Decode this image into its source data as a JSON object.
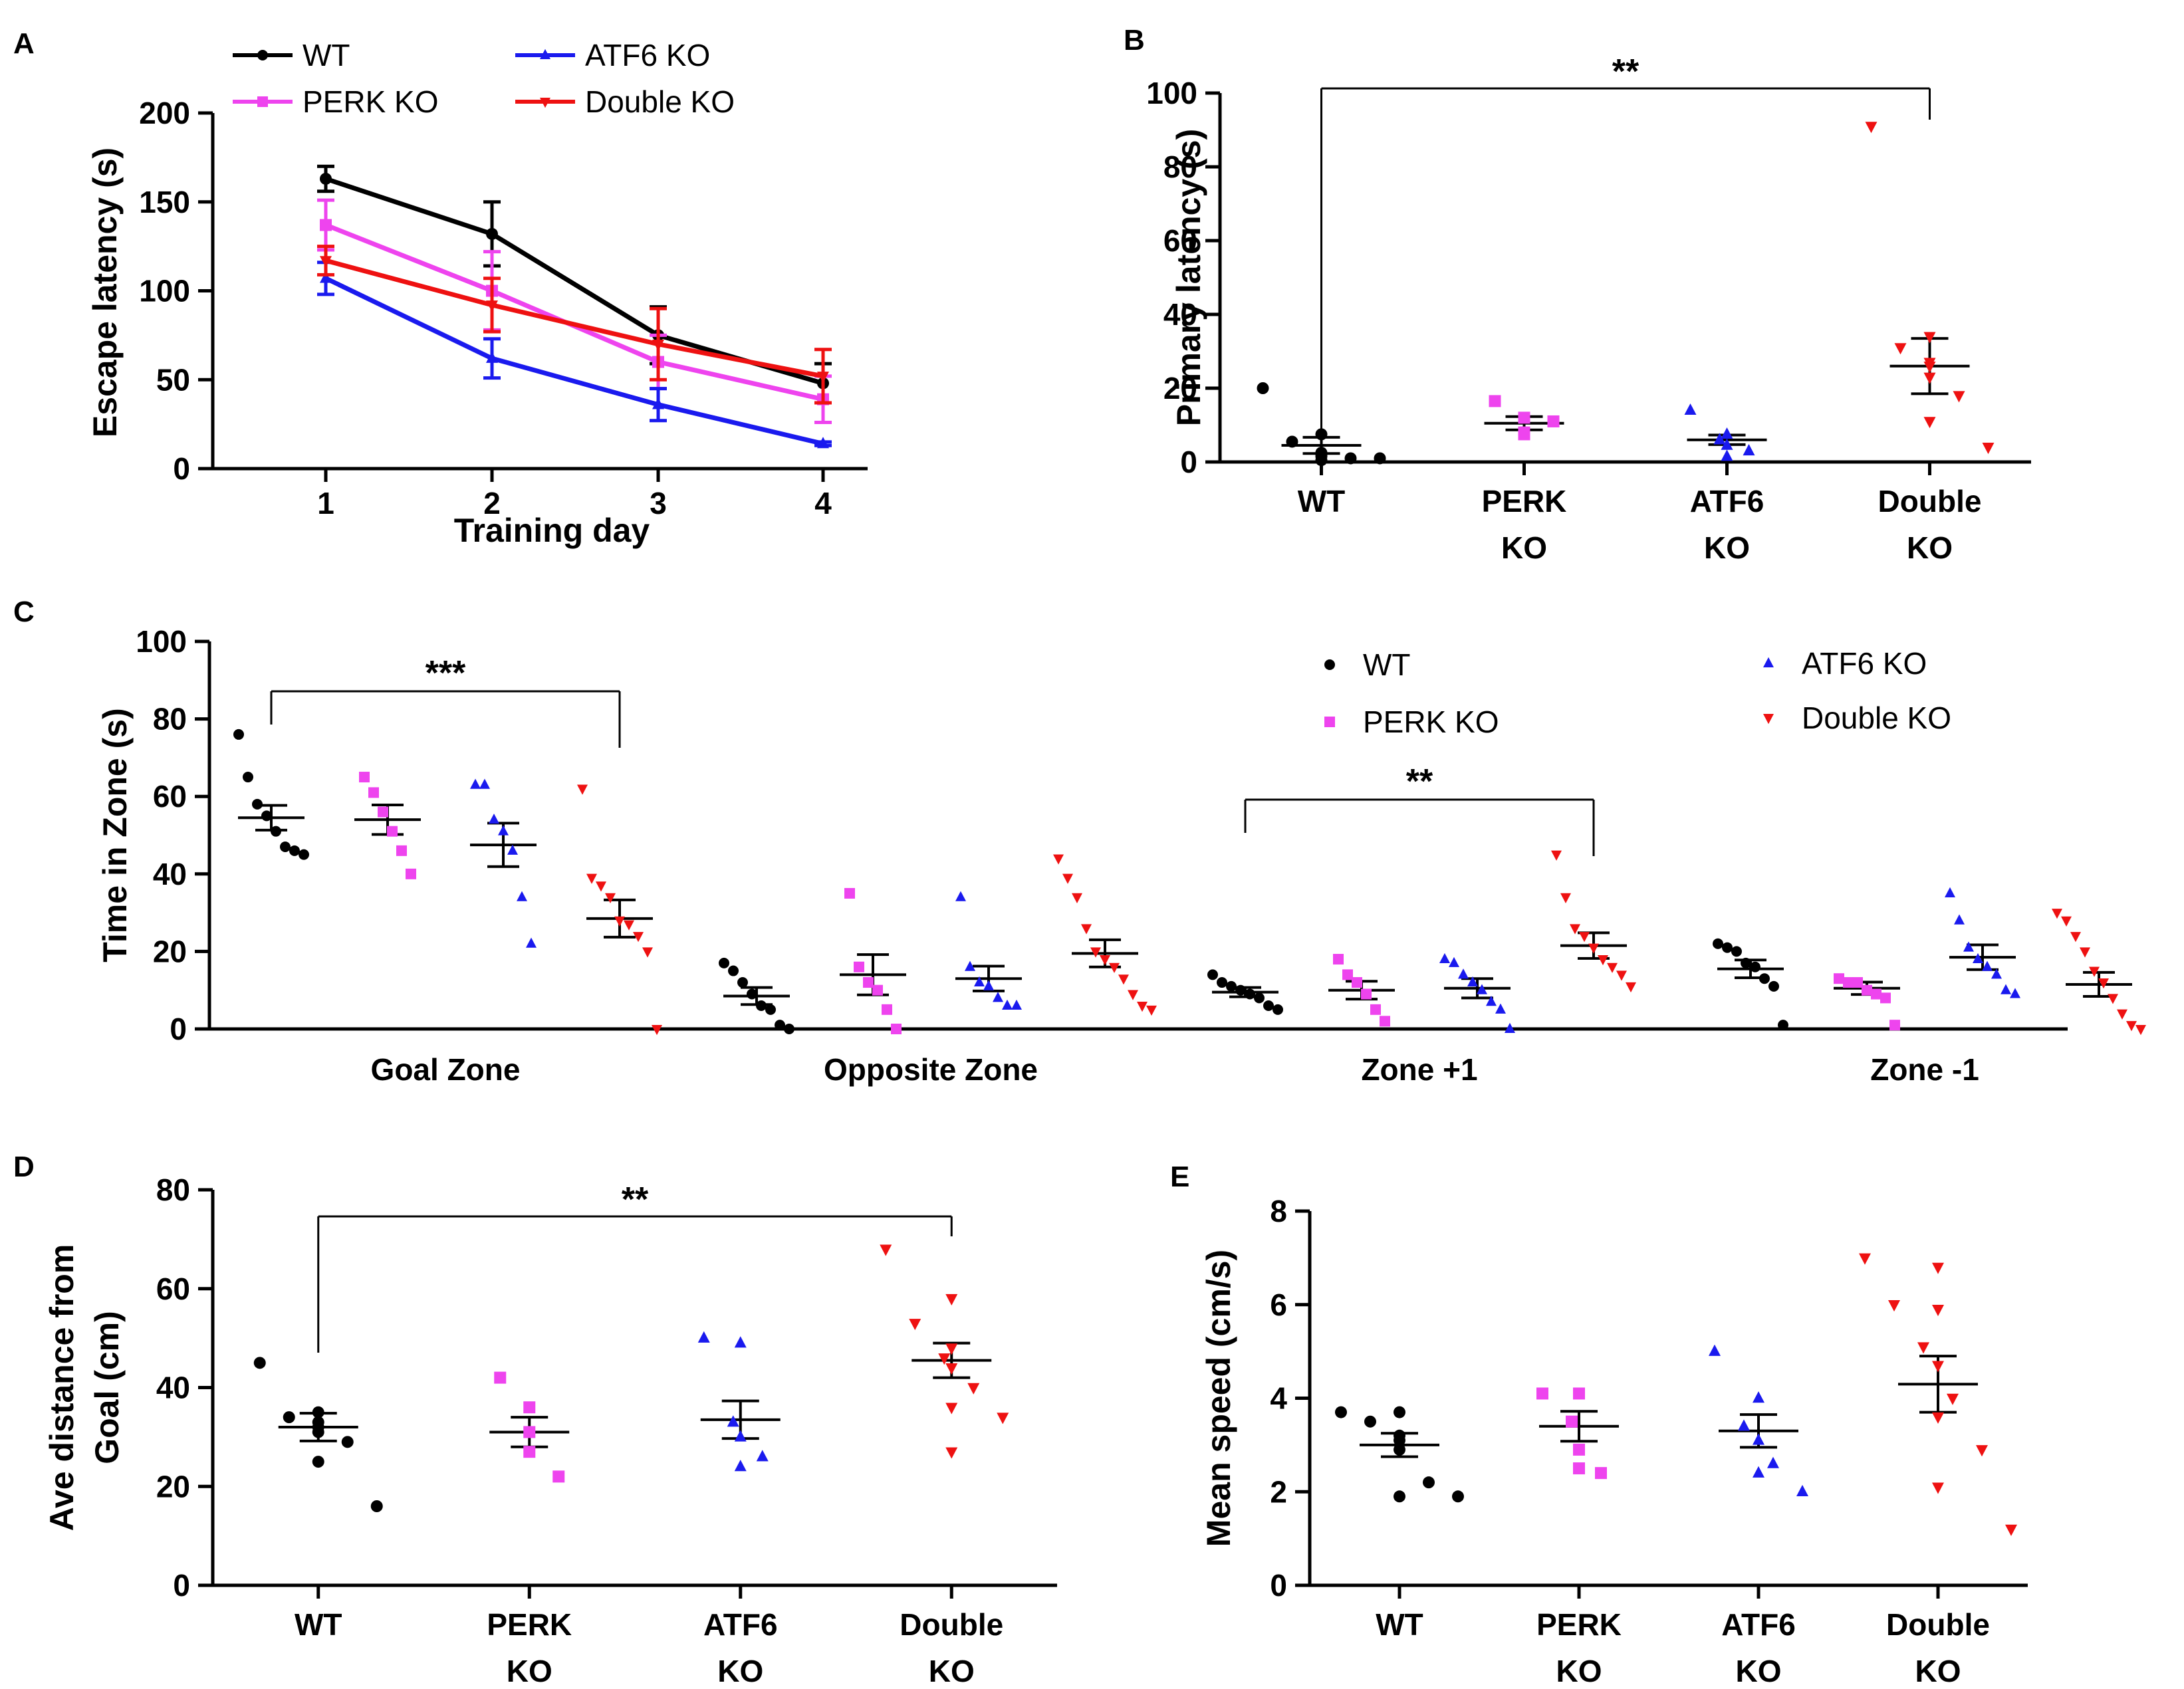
{
  "figure": {
    "panel_labels": [
      "A",
      "B",
      "C",
      "D",
      "E"
    ],
    "colors": {
      "WT": "#000000",
      "PERK KO": "#ee44ee",
      "ATF6 KO": "#1a1aee",
      "Double KO": "#ee1111"
    }
  },
  "chart_data": [
    {
      "panel": "A",
      "type": "line",
      "title": "",
      "xlabel": "Training day",
      "ylabel": "Escape latency (s)",
      "x": [
        1,
        2,
        3,
        4
      ],
      "xticks": [
        "1",
        "2",
        "3",
        "4"
      ],
      "ylim": [
        0,
        200
      ],
      "yticks": [
        "0",
        "50",
        "100",
        "150",
        "200"
      ],
      "legend": [
        "WT",
        "ATF6 KO",
        "PERK KO",
        "Double KO"
      ],
      "legend_position": "top",
      "series": [
        {
          "name": "WT",
          "marker": "circle",
          "values": [
            163,
            132,
            75,
            48
          ],
          "errors": [
            7,
            18,
            16,
            11
          ]
        },
        {
          "name": "PERK KO",
          "marker": "square",
          "values": [
            137,
            100,
            60,
            39
          ],
          "errors": [
            14,
            22,
            15,
            13
          ]
        },
        {
          "name": "ATF6 KO",
          "marker": "triangle",
          "values": [
            107,
            62,
            36,
            14
          ],
          "errors": [
            9,
            11,
            9,
            1
          ]
        },
        {
          "name": "Double KO",
          "marker": "triangle-down",
          "values": [
            117,
            92,
            70,
            52
          ],
          "errors": [
            8,
            15,
            20,
            15
          ]
        }
      ]
    },
    {
      "panel": "B",
      "type": "scatter",
      "title": "",
      "xlabel": "",
      "ylabel": "Primary latency (s)",
      "categories": [
        "WT",
        "PERK KO",
        "ATF6 KO",
        "Double KO"
      ],
      "category_lines": [
        [
          "WT"
        ],
        [
          "PERK",
          "KO"
        ],
        [
          "ATF6",
          "KO"
        ],
        [
          "Double",
          "KO"
        ]
      ],
      "ylim": [
        0,
        100
      ],
      "yticks": [
        "0",
        "20",
        "40",
        "60",
        "80",
        "100"
      ],
      "groups": [
        {
          "name": "WT",
          "marker": "circle",
          "mean": 4.5,
          "sem": 2.2,
          "points": [
            20,
            7.5,
            5.5,
            2.5,
            2,
            1.5,
            1,
            0.5,
            1
          ]
        },
        {
          "name": "PERK KO",
          "marker": "square",
          "mean": 10.5,
          "sem": 1.8,
          "points": [
            16.5,
            12,
            8,
            7.5,
            11
          ]
        },
        {
          "name": "ATF6 KO",
          "marker": "triangle",
          "mean": 6,
          "sem": 1.3,
          "points": [
            14,
            7.5,
            6,
            4.5,
            3,
            1.5
          ]
        },
        {
          "name": "Double KO",
          "marker": "triangle-down",
          "mean": 26,
          "sem": 7.5,
          "points": [
            91,
            34,
            31,
            27,
            26,
            23,
            18,
            11,
            4
          ]
        }
      ],
      "significance": {
        "from": "WT",
        "to": "Double KO",
        "label": "**"
      }
    },
    {
      "panel": "C",
      "type": "scatter",
      "title": "",
      "xlabel": "",
      "ylabel": "Time in Zone (s)",
      "categories": [
        "Goal Zone",
        "Opposite Zone",
        "Zone +1",
        "Zone -1"
      ],
      "ylim": [
        0,
        100
      ],
      "yticks": [
        "0",
        "20",
        "40",
        "60",
        "80",
        "100"
      ],
      "legend": [
        "WT",
        "ATF6 KO",
        "PERK KO",
        "Double KO"
      ],
      "legend_position": "upper-right",
      "groups": [
        {
          "zone": "Goal Zone",
          "name": "WT",
          "marker": "circle",
          "mean": 54.5,
          "sem": 3.2,
          "points": [
            76,
            65,
            58,
            55,
            51,
            47,
            46,
            45
          ]
        },
        {
          "zone": "Goal Zone",
          "name": "PERK KO",
          "marker": "square",
          "mean": 54,
          "sem": 3.8,
          "points": [
            65,
            61,
            56,
            51,
            46,
            40
          ]
        },
        {
          "zone": "Goal Zone",
          "name": "ATF6 KO",
          "marker": "triangle",
          "mean": 47.5,
          "sem": 5.6,
          "points": [
            63,
            63,
            54,
            51,
            46,
            34,
            22
          ]
        },
        {
          "zone": "Goal Zone",
          "name": "Double KO",
          "marker": "triangle-down",
          "mean": 28.5,
          "sem": 4.8,
          "points": [
            62,
            39,
            37,
            34,
            28,
            27,
            24,
            20,
            0
          ]
        },
        {
          "zone": "Opposite Zone",
          "name": "WT",
          "marker": "circle",
          "mean": 8.5,
          "sem": 2.2,
          "points": [
            17,
            15,
            12,
            9,
            6,
            5,
            1,
            0
          ]
        },
        {
          "zone": "Opposite Zone",
          "name": "PERK KO",
          "marker": "square",
          "mean": 14,
          "sem": 5.2,
          "points": [
            35,
            16,
            12,
            10,
            5,
            0
          ]
        },
        {
          "zone": "Opposite Zone",
          "name": "ATF6 KO",
          "marker": "triangle",
          "mean": 13,
          "sem": 3.2,
          "points": [
            34,
            16,
            12,
            11,
            8,
            6,
            6
          ]
        },
        {
          "zone": "Opposite Zone",
          "name": "Double KO",
          "marker": "triangle-down",
          "mean": 19.5,
          "sem": 3.5,
          "points": [
            44,
            39,
            34,
            26,
            20,
            18,
            16,
            13,
            9,
            6,
            5
          ]
        },
        {
          "zone": "Zone +1",
          "name": "WT",
          "marker": "circle",
          "mean": 9.5,
          "sem": 1.2,
          "points": [
            14,
            12,
            11,
            10,
            9,
            8,
            6,
            5
          ]
        },
        {
          "zone": "Zone +1",
          "name": "PERK KO",
          "marker": "square",
          "mean": 10,
          "sem": 2.3,
          "points": [
            18,
            14,
            12,
            9,
            5,
            2
          ]
        },
        {
          "zone": "Zone +1",
          "name": "ATF6 KO",
          "marker": "triangle",
          "mean": 10.5,
          "sem": 2.5,
          "points": [
            18,
            17,
            14,
            12,
            10,
            7,
            5,
            0
          ]
        },
        {
          "zone": "Zone +1",
          "name": "Double KO",
          "marker": "triangle-down",
          "mean": 21.5,
          "sem": 3.3,
          "points": [
            45,
            34,
            26,
            24,
            21,
            18,
            16,
            14,
            11
          ]
        },
        {
          "zone": "Zone -1",
          "name": "WT",
          "marker": "circle",
          "mean": 15.5,
          "sem": 2.3,
          "points": [
            22,
            21,
            20,
            17,
            16,
            13,
            11,
            1
          ]
        },
        {
          "zone": "Zone -1",
          "name": "PERK KO",
          "marker": "square",
          "mean": 10.5,
          "sem": 1.6,
          "points": [
            13,
            12,
            12,
            10,
            9,
            8,
            1
          ]
        },
        {
          "zone": "Zone -1",
          "name": "ATF6 KO",
          "marker": "triangle",
          "mean": 18.5,
          "sem": 3.2,
          "points": [
            35,
            28,
            21,
            18,
            16,
            14,
            10,
            9
          ]
        },
        {
          "zone": "Zone -1",
          "name": "Double KO",
          "marker": "triangle-down",
          "mean": 11.5,
          "sem": 3.1,
          "points": [
            30,
            28,
            24,
            20,
            15,
            12,
            8,
            4,
            1,
            0
          ]
        }
      ],
      "significance": [
        {
          "zone": "Goal Zone",
          "from": "WT",
          "to": "Double KO",
          "label": "***"
        },
        {
          "zone": "Zone +1",
          "from": "WT",
          "to": "Double KO",
          "label": "**"
        }
      ]
    },
    {
      "panel": "D",
      "type": "scatter",
      "title": "",
      "xlabel": "",
      "ylabel": "Ave distance from Goal (cm)",
      "ylabel_lines": [
        "Ave distance from",
        "Goal (cm)"
      ],
      "categories": [
        "WT",
        "PERK KO",
        "ATF6 KO",
        "Double KO"
      ],
      "category_lines": [
        [
          "WT"
        ],
        [
          "PERK",
          "KO"
        ],
        [
          "ATF6",
          "KO"
        ],
        [
          "Double",
          "KO"
        ]
      ],
      "ylim": [
        0,
        80
      ],
      "yticks": [
        "0",
        "20",
        "40",
        "60",
        "80"
      ],
      "groups": [
        {
          "name": "WT",
          "marker": "circle",
          "mean": 32,
          "sem": 2.8,
          "points": [
            45,
            35,
            34,
            33,
            32,
            31,
            29,
            25,
            16
          ]
        },
        {
          "name": "PERK KO",
          "marker": "square",
          "mean": 31,
          "sem": 3,
          "points": [
            42,
            36,
            31,
            27,
            22
          ]
        },
        {
          "name": "ATF6 KO",
          "marker": "triangle",
          "mean": 33.5,
          "sem": 3.8,
          "points": [
            50,
            49,
            33,
            30,
            26,
            24
          ]
        },
        {
          "name": "Double KO",
          "marker": "triangle-down",
          "mean": 45.5,
          "sem": 3.5,
          "points": [
            68,
            58,
            53,
            48,
            46,
            44,
            40,
            36,
            34,
            27
          ]
        }
      ],
      "significance": {
        "from": "WT",
        "to": "Double KO",
        "label": "**"
      }
    },
    {
      "panel": "E",
      "type": "scatter",
      "title": "",
      "xlabel": "",
      "ylabel": "Mean speed (cm/s)",
      "categories": [
        "WT",
        "PERK KO",
        "ATF6 KO",
        "Double KO"
      ],
      "category_lines": [
        [
          "WT"
        ],
        [
          "PERK",
          "KO"
        ],
        [
          "ATF6",
          "KO"
        ],
        [
          "Double",
          "KO"
        ]
      ],
      "ylim": [
        0,
        8
      ],
      "yticks": [
        "0",
        "2",
        "4",
        "6",
        "8"
      ],
      "groups": [
        {
          "name": "WT",
          "marker": "circle",
          "mean": 3,
          "sem": 0.25,
          "points": [
            3.7,
            3.7,
            3.5,
            3.2,
            3.1,
            2.9,
            2.2,
            1.9,
            1.9
          ]
        },
        {
          "name": "PERK KO",
          "marker": "square",
          "mean": 3.4,
          "sem": 0.32,
          "points": [
            4.1,
            4.1,
            3.5,
            2.9,
            2.4,
            2.5
          ]
        },
        {
          "name": "ATF6 KO",
          "marker": "triangle",
          "mean": 3.3,
          "sem": 0.35,
          "points": [
            5,
            4,
            3.4,
            3.1,
            2.6,
            2.4,
            2
          ]
        },
        {
          "name": "Double KO",
          "marker": "triangle-down",
          "mean": 4.3,
          "sem": 0.6,
          "points": [
            7,
            6.8,
            6,
            5.9,
            5.1,
            4.7,
            4,
            3.6,
            2.9,
            2.1,
            1.2
          ]
        }
      ]
    }
  ]
}
